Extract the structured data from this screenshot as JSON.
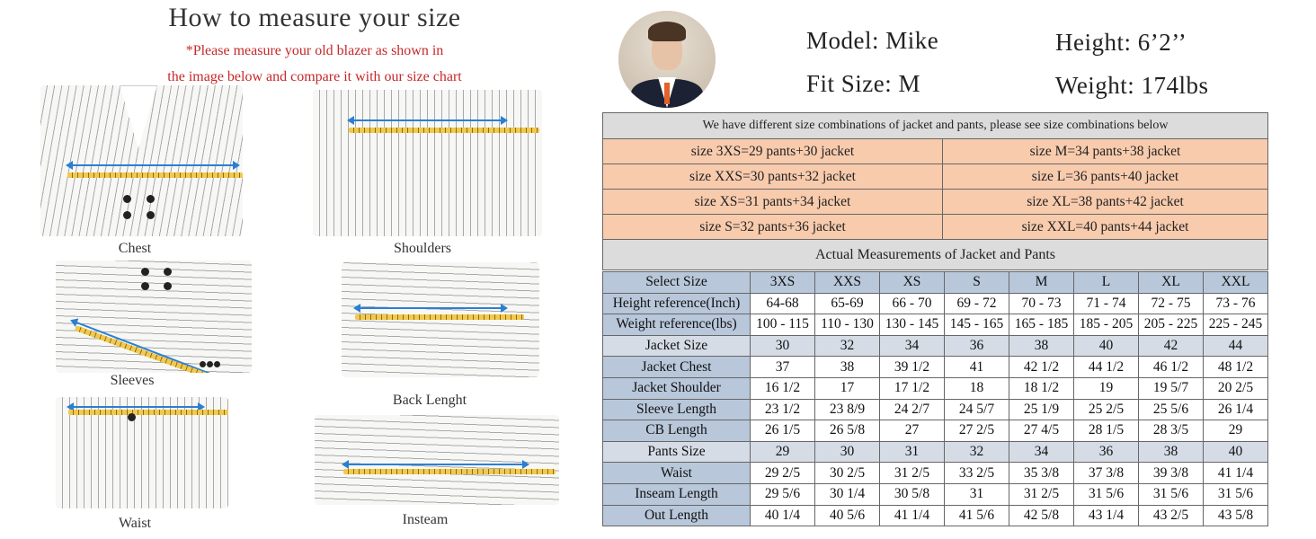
{
  "guide": {
    "title": "How to measure your size",
    "subtitle_line1": "*Please measure your old blazer as shown in",
    "subtitle_line2": "the image below and compare it with our size chart",
    "captions": {
      "chest": "Chest",
      "shoulders": "Shoulders",
      "sleeves": "Sleeves",
      "back_length": "Back Lenght",
      "waist": "Waist",
      "insteam": "Insteam"
    }
  },
  "model": {
    "name_label": "Model: Mike",
    "height_label": "Height: 6’2’’",
    "fit_label": "Fit Size: M",
    "weight_label": "Weight: 174lbs"
  },
  "combinations": {
    "header": "We have different size combinations of jacket and pants, please see size combinations below",
    "rows": [
      [
        "size 3XS=29 pants+30 jacket",
        "size M=34 pants+38 jacket"
      ],
      [
        "size XXS=30 pants+32 jacket",
        "size L=36 pants+40 jacket"
      ],
      [
        "size XS=31 pants+34 jacket",
        "size XL=38 pants+42 jacket"
      ],
      [
        "size S=32 pants+36 jacket",
        "size XXL=40 pants+44 jacket"
      ]
    ]
  },
  "measurements": {
    "title": "Actual Measurements of Jacket and Pants",
    "columns": [
      "Select Size",
      "3XS",
      "XXS",
      "XS",
      "S",
      "M",
      "L",
      "XL",
      "XXL"
    ],
    "rows": [
      [
        "Height reference(Inch)",
        "64-68",
        "65-69",
        "66 - 70",
        "69 - 72",
        "70 - 73",
        "71 - 74",
        "72 - 75",
        "73 - 76"
      ],
      [
        "Weight reference(lbs)",
        "100 - 115",
        "110 - 130",
        "130 - 145",
        "145 - 165",
        "165 - 185",
        "185 - 205",
        "205 - 225",
        "225 - 245"
      ],
      [
        "Jacket Size",
        "30",
        "32",
        "34",
        "36",
        "38",
        "40",
        "42",
        "44"
      ],
      [
        "Jacket Chest",
        "37",
        "38",
        "39 1/2",
        "41",
        "42 1/2",
        "44 1/2",
        "46 1/2",
        "48 1/2"
      ],
      [
        "Jacket Shoulder",
        "16 1/2",
        "17",
        "17 1/2",
        "18",
        "18 1/2",
        "19",
        "19 5/7",
        "20 2/5"
      ],
      [
        "Sleeve Length",
        "23 1/2",
        "23 8/9",
        "24 2/7",
        "24 5/7",
        "25 1/9",
        "25 2/5",
        "25 5/6",
        "26 1/4"
      ],
      [
        "CB Length",
        "26 1/5",
        "26 5/8",
        "27",
        "27 2/5",
        "27 4/5",
        "28 1/5",
        "28 3/5",
        "29"
      ],
      [
        "Pants Size",
        "29",
        "30",
        "31",
        "32",
        "34",
        "36",
        "38",
        "40"
      ],
      [
        "Waist",
        "29 2/5",
        "30 2/5",
        "31 2/5",
        "33 2/5",
        "35 3/8",
        "37 3/8",
        "39 3/8",
        "41 1/4"
      ],
      [
        "Inseam Length",
        "29 5/6",
        "30 1/4",
        "30 5/8",
        "31",
        "31 2/5",
        "31 5/6",
        "31 5/6",
        "31 5/6"
      ],
      [
        "Out Length",
        "40 1/4",
        "40 5/6",
        "41 1/4",
        "41 5/6",
        "42 5/8",
        "43 1/4",
        "43 2/5",
        "43 5/8"
      ]
    ]
  }
}
